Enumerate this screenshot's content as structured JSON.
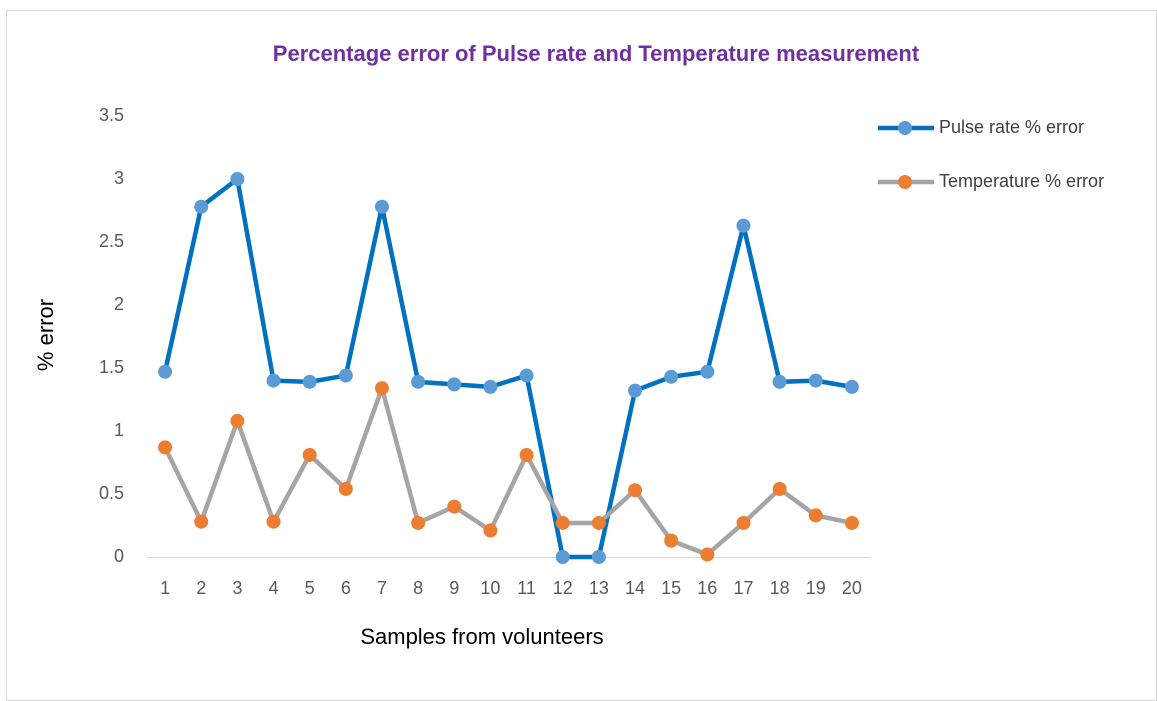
{
  "chart_data": {
    "type": "line",
    "title": "Percentage error of Pulse rate and Temperature measurement",
    "x_label": "Samples from volunteers",
    "y_label": "% error",
    "categories": [
      "1",
      "2",
      "3",
      "4",
      "5",
      "6",
      "7",
      "8",
      "9",
      "10",
      "11",
      "12",
      "13",
      "14",
      "15",
      "16",
      "17",
      "18",
      "19",
      "20"
    ],
    "series": [
      {
        "name": "Pulse rate % error",
        "color": "#0070c0",
        "marker_color": "#5b9bd5",
        "values": [
          1.47,
          2.78,
          3.0,
          1.4,
          1.39,
          1.44,
          2.78,
          1.39,
          1.37,
          1.35,
          1.44,
          0,
          0,
          1.32,
          1.43,
          1.47,
          2.63,
          1.39,
          1.4,
          1.35
        ]
      },
      {
        "name": "Temperature % error",
        "color": "#a5a5a5",
        "marker_color": "#ed7d31",
        "values": [
          0.87,
          0.28,
          1.08,
          0.28,
          0.81,
          0.54,
          1.34,
          0.27,
          0.4,
          0.21,
          0.81,
          0.27,
          0.27,
          0.53,
          0.13,
          0.02,
          0.27,
          0.54,
          0.33,
          0.27
        ]
      }
    ],
    "ylim": [
      0,
      3.5
    ],
    "yticks": [
      0,
      0.5,
      1,
      1.5,
      2,
      2.5,
      3,
      3.5
    ],
    "grid": false,
    "legend": "right"
  }
}
